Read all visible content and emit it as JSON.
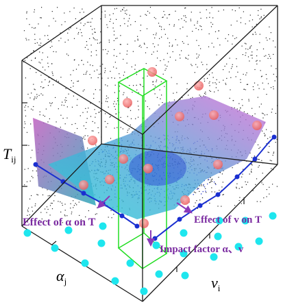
{
  "axes": {
    "z_label": "T",
    "z_sub": "ij",
    "y_label": "α",
    "y_sub": "j",
    "x_label": "v",
    "x_sub": "i"
  },
  "annotations": {
    "effect_alpha": "Effect of α on T",
    "effect_v": "Effect of v on T",
    "impact": "Impact factor α、v"
  },
  "colors": {
    "box_line": "#1a1a1a",
    "green_prism": "#22dd22",
    "surface_pink": "#d070d0",
    "surface_cyan": "#30c8d8",
    "red_marker": "#f07070",
    "cyan_dot": "#1ee6ee",
    "blue_curve": "#1a2fd0",
    "arrow_purple": "#8a3ab9",
    "annot_text": "#7a2aa0"
  },
  "icons": {
    "arrow": "arrow-icon"
  }
}
